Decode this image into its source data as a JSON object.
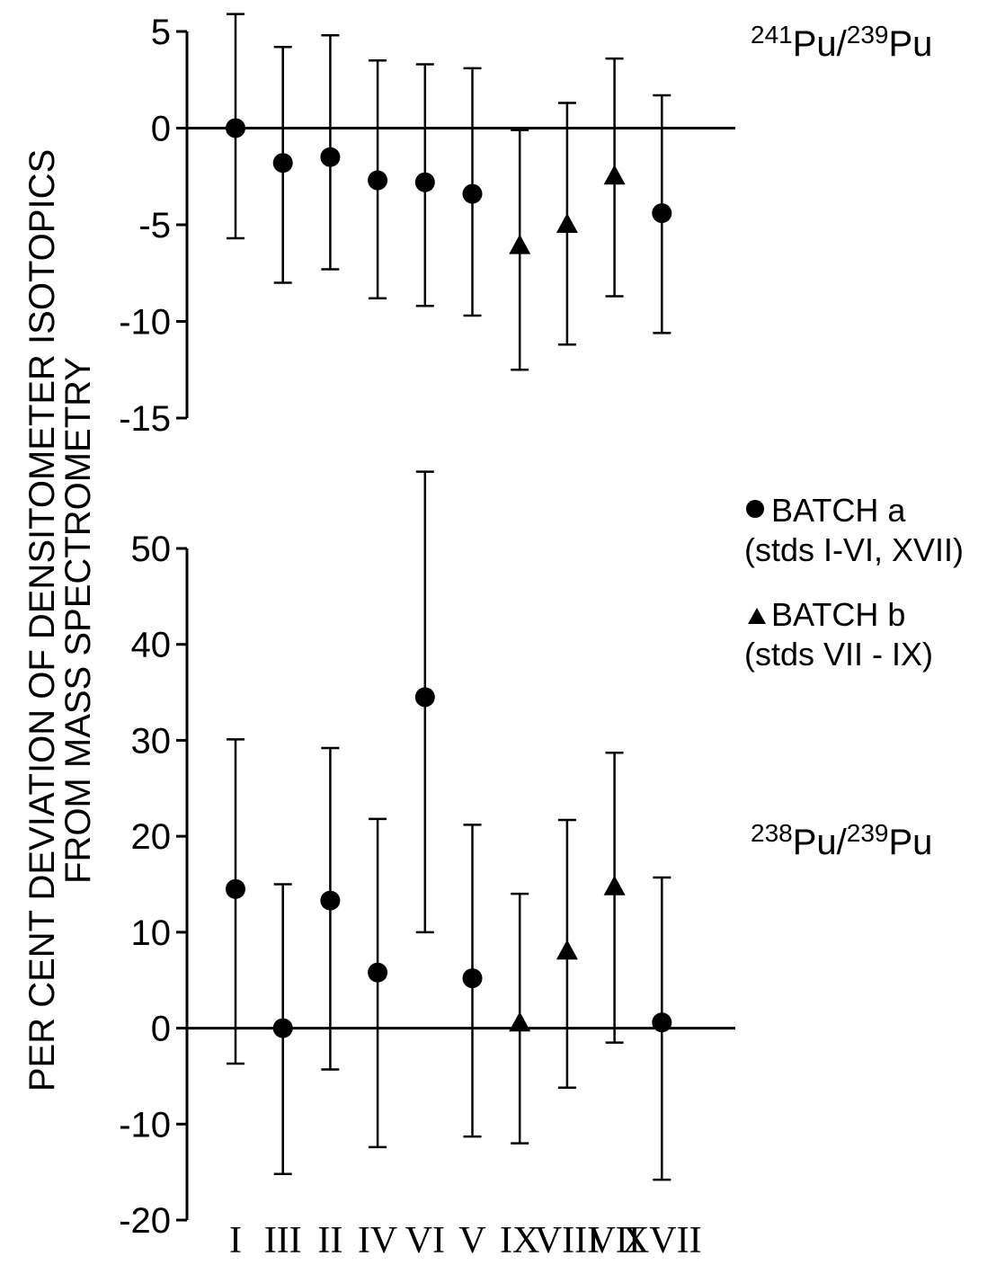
{
  "chart_data": [
    {
      "type": "scatter",
      "panel": "top",
      "title_parts": {
        "mass_a": "241",
        "elem_a": "Pu",
        "sep": "/",
        "mass_b": "239",
        "elem_b": "Pu"
      },
      "ylim": [
        -15,
        5
      ],
      "yticks": [
        5,
        0,
        -5,
        -10,
        -15
      ],
      "categories": [
        "I",
        "III",
        "II",
        "IV",
        "VI",
        "V",
        "IX",
        "VIII",
        "VII",
        "XVII"
      ],
      "points": [
        {
          "category": "I",
          "value": 0,
          "low": -5.7,
          "high": 5.9,
          "batch": "a"
        },
        {
          "category": "III",
          "value": -1.8,
          "low": -8.0,
          "high": 4.2,
          "batch": "a"
        },
        {
          "category": "II",
          "value": -1.5,
          "low": -7.3,
          "high": 4.8,
          "batch": "a"
        },
        {
          "category": "IV",
          "value": -2.7,
          "low": -8.8,
          "high": 3.5,
          "batch": "a"
        },
        {
          "category": "VI",
          "value": -2.8,
          "low": -9.2,
          "high": 3.3,
          "batch": "a"
        },
        {
          "category": "V",
          "value": -3.4,
          "low": -9.7,
          "high": 3.1,
          "batch": "a"
        },
        {
          "category": "IX",
          "value": -6.1,
          "low": -12.5,
          "high": -0.1,
          "batch": "b"
        },
        {
          "category": "VIII",
          "value": -5.0,
          "low": -11.2,
          "high": 1.3,
          "batch": "b"
        },
        {
          "category": "VII",
          "value": -2.5,
          "low": -8.7,
          "high": 3.6,
          "batch": "b"
        },
        {
          "category": "XVII",
          "value": -4.4,
          "low": -10.6,
          "high": 1.7,
          "batch": "a"
        }
      ]
    },
    {
      "type": "scatter",
      "panel": "bottom",
      "title_parts": {
        "mass_a": "238",
        "elem_a": "Pu",
        "sep": "/",
        "mass_b": "239",
        "elem_b": "Pu"
      },
      "ylim": [
        -20,
        50
      ],
      "yticks": [
        50,
        40,
        30,
        20,
        10,
        0,
        -10,
        -20
      ],
      "categories": [
        "I",
        "III",
        "II",
        "IV",
        "VI",
        "V",
        "IX",
        "VIII",
        "VII",
        "XVII"
      ],
      "points": [
        {
          "category": "I",
          "value": 14.5,
          "low": -3.7,
          "high": 30.1,
          "batch": "a"
        },
        {
          "category": "III",
          "value": 0,
          "low": -15.2,
          "high": 15.0,
          "batch": "a"
        },
        {
          "category": "II",
          "value": 13.3,
          "low": -4.3,
          "high": 29.2,
          "batch": "a"
        },
        {
          "category": "IV",
          "value": 5.8,
          "low": -12.4,
          "high": 21.8,
          "batch": "a"
        },
        {
          "category": "VI",
          "value": 34.5,
          "low": 10.0,
          "high": 58.0,
          "batch": "a"
        },
        {
          "category": "V",
          "value": 5.2,
          "low": -11.3,
          "high": 21.2,
          "batch": "a"
        },
        {
          "category": "IX",
          "value": 0.5,
          "low": -12.0,
          "high": 14.0,
          "batch": "b"
        },
        {
          "category": "VIII",
          "value": 8.0,
          "low": -6.2,
          "high": 21.7,
          "batch": "b"
        },
        {
          "category": "VII",
          "value": 14.7,
          "low": -1.5,
          "high": 28.7,
          "batch": "b"
        },
        {
          "category": "XVII",
          "value": 0.6,
          "low": -15.8,
          "high": 15.7,
          "batch": "a"
        }
      ]
    }
  ],
  "ylabel_line1": "PER CENT DEVIATION OF DENSITOMETER ISOTOPICS",
  "ylabel_line2": "FROM MASS SPECTROMETRY",
  "legend": [
    {
      "marker": "circle",
      "name": "BATCH a",
      "detail": "(stds I-VI, XVII)"
    },
    {
      "marker": "triangle",
      "name": "BATCH b",
      "detail": "(stds VII - IX)"
    }
  ]
}
